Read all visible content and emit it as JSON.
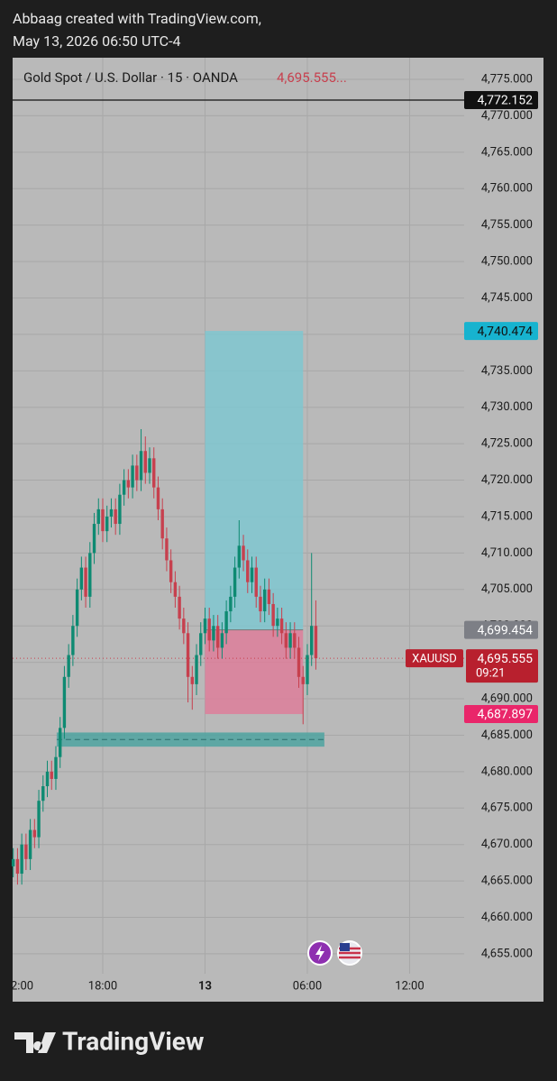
{
  "header": {
    "line1": "Abbaag created with TradingView.com,",
    "line2": "May 13, 2026 06:50 UTC-4"
  },
  "footer": {
    "brand": "TradingView"
  },
  "chart_data": {
    "type": "candlestick",
    "title": "Gold Spot / U.S. Dollar · 15 · OANDA",
    "last_price_label": "4,695.555...",
    "up_color": "#0e8a72",
    "down_color": "#c7404e",
    "grid": true,
    "xlim": [
      0.714,
      27.2
    ],
    "ylim": [
      4652.27,
      4777.97
    ],
    "xticks": [
      {
        "value": 0,
        "label": "2:00"
      },
      {
        "value": 6,
        "label": "18:00"
      },
      {
        "value": 12,
        "label": "13"
      },
      {
        "value": 18,
        "label": "06:00"
      },
      {
        "value": 24,
        "label": "12:00"
      }
    ],
    "yticks": [
      {
        "value": 4655,
        "label": "4,655.000"
      },
      {
        "value": 4660,
        "label": "4,660.000"
      },
      {
        "value": 4665,
        "label": "4,665.000"
      },
      {
        "value": 4670,
        "label": "4,670.000"
      },
      {
        "value": 4675,
        "label": "4,675.000"
      },
      {
        "value": 4680,
        "label": "4,680.000"
      },
      {
        "value": 4685,
        "label": "4,685.000"
      },
      {
        "value": 4690,
        "label": "4,690.000"
      },
      {
        "value": 4695,
        "label": "4,695.000"
      },
      {
        "value": 4700,
        "label": "4,700.000"
      },
      {
        "value": 4705,
        "label": "4,705.000"
      },
      {
        "value": 4710,
        "label": "4,710.000"
      },
      {
        "value": 4715,
        "label": "4,715.000"
      },
      {
        "value": 4720,
        "label": "4,720.000"
      },
      {
        "value": 4725,
        "label": "4,725.000"
      },
      {
        "value": 4730,
        "label": "4,730.000"
      },
      {
        "value": 4735,
        "label": "4,735.000"
      },
      {
        "value": 4740,
        "label": "4,740.000"
      },
      {
        "value": 4745,
        "label": "4,745.000"
      },
      {
        "value": 4750,
        "label": "4,750.000"
      },
      {
        "value": 4755,
        "label": "4,755.000"
      },
      {
        "value": 4760,
        "label": "4,760.000"
      },
      {
        "value": 4765,
        "label": "4,765.000"
      },
      {
        "value": 4770,
        "label": "4,770.000"
      },
      {
        "value": 4775,
        "label": "4,775.000"
      }
    ],
    "x": [
      0.75,
      1,
      1.25,
      1.5,
      1.75,
      2,
      2.25,
      2.5,
      2.75,
      3,
      3.25,
      3.5,
      3.75,
      4,
      4.25,
      4.5,
      4.75,
      5,
      5.25,
      5.5,
      5.75,
      6,
      6.25,
      6.5,
      6.75,
      7,
      7.25,
      7.5,
      7.75,
      8,
      8.25,
      8.5,
      8.75,
      9,
      9.25,
      9.5,
      9.75,
      10,
      10.25,
      10.5,
      10.75,
      11,
      11.25,
      11.5,
      11.75,
      12,
      12.25,
      12.5,
      12.75,
      13,
      13.25,
      13.5,
      13.75,
      14,
      14.25,
      14.5,
      14.75,
      15,
      15.25,
      15.5,
      15.75,
      16,
      16.25,
      16.5,
      16.75,
      17,
      17.25,
      17.5,
      17.75,
      18,
      18.25,
      18.5
    ],
    "open": [
      4667,
      4668,
      4666,
      4670,
      4668,
      4672,
      4671,
      4676,
      4678,
      4680,
      4679,
      4682,
      4686,
      4693,
      4696,
      4700,
      4705,
      4708,
      4704,
      4710,
      4714,
      4716,
      4713,
      4715,
      4716,
      4714,
      4718,
      4720,
      4719,
      4722,
      4720,
      4724,
      4721,
      4723,
      4719,
      4716,
      4712,
      4709,
      4706,
      4704,
      4701,
      4699,
      4693,
      4692,
      4696,
      4699,
      4701,
      4698,
      4700,
      4697,
      4699,
      4702,
      4704,
      4708,
      4711,
      4709,
      4706,
      4708,
      4704,
      4702,
      4705,
      4703,
      4700,
      4701,
      4699,
      4697,
      4699,
      4697,
      4693,
      4692,
      4696,
      4700
    ],
    "high": [
      4669.5,
      4669.5,
      4671.5,
      4671.5,
      4673.5,
      4673.5,
      4677.5,
      4679.5,
      4681.5,
      4681.5,
      4683.5,
      4687.5,
      4694.5,
      4697.5,
      4701.5,
      4706.5,
      4709.5,
      4709.5,
      4711.5,
      4715.5,
      4717.5,
      4717.5,
      4716.5,
      4717.5,
      4717.5,
      4719.5,
      4721.5,
      4721.5,
      4723.5,
      4723.5,
      4727,
      4726,
      4724.5,
      4724.5,
      4720.5,
      4717.5,
      4713.5,
      4710.5,
      4707.5,
      4705.5,
      4702.5,
      4700.5,
      4694.5,
      4697.5,
      4700.5,
      4702.5,
      4702.5,
      4701.5,
      4701.5,
      4700.5,
      4703.5,
      4705.5,
      4709.5,
      4714.5,
      4712.5,
      4710.5,
      4709.5,
      4709.5,
      4705.5,
      4706.5,
      4706.5,
      4704.5,
      4702.5,
      4702.5,
      4700.5,
      4700.5,
      4700.5,
      4698.5,
      4694.5,
      4697.5,
      4710,
      4703.5
    ],
    "low": [
      4665.5,
      4664.5,
      4664.5,
      4666.5,
      4666.5,
      4669.5,
      4669.5,
      4674.5,
      4676.5,
      4677.5,
      4677.5,
      4680.5,
      4684.5,
      4691.5,
      4694.5,
      4698.5,
      4703.5,
      4702.5,
      4702.5,
      4708.5,
      4712.5,
      4711.5,
      4711.5,
      4713.5,
      4712.5,
      4712.5,
      4716.5,
      4717.5,
      4717.5,
      4718.5,
      4718.5,
      4719.5,
      4719.5,
      4717.5,
      4714.5,
      4710.5,
      4707.5,
      4704.5,
      4702.5,
      4699.5,
      4697.5,
      4689.5,
      4688.5,
      4690.5,
      4694.5,
      4697.5,
      4696.5,
      4696.5,
      4695.5,
      4695.5,
      4697.5,
      4700.5,
      4702.5,
      4706.5,
      4707.5,
      4704.5,
      4704.5,
      4702.5,
      4700.5,
      4700.5,
      4701.5,
      4698.5,
      4698.5,
      4697.5,
      4695.5,
      4695.5,
      4695.5,
      4691.5,
      4686.5,
      4690.5,
      4694.5,
      4694
    ],
    "close": [
      4668,
      4666,
      4670,
      4668,
      4672,
      4671,
      4676,
      4678,
      4680,
      4679,
      4682,
      4686,
      4693,
      4696,
      4700,
      4705,
      4708,
      4704,
      4710,
      4714,
      4716,
      4713,
      4715,
      4716,
      4714,
      4718,
      4720,
      4719,
      4722,
      4720,
      4724,
      4721,
      4723,
      4719,
      4716,
      4712,
      4709,
      4706,
      4704,
      4701,
      4699,
      4693,
      4692,
      4696,
      4699,
      4701,
      4698,
      4700,
      4697,
      4699,
      4702,
      4704,
      4708,
      4711,
      4709,
      4706,
      4708,
      4704,
      4702,
      4705,
      4703,
      4700,
      4701,
      4699,
      4697,
      4699,
      4697,
      4693,
      4692,
      4696,
      4700,
      4695.555
    ],
    "last_price": {
      "value": 4695.555,
      "label": "4,695.555",
      "symbol": "XAUUSD",
      "countdown": "09:21"
    },
    "horizontal_line": {
      "value": 4772.152,
      "label": "4,772.152"
    },
    "position": {
      "x_start": 12,
      "x_end": 17.75,
      "target": {
        "value": 4740.474,
        "label": "4,740.474"
      },
      "entry": {
        "value": 4699.454,
        "label": "4,699.454"
      },
      "stop": {
        "value": 4687.897,
        "label": "4,687.897"
      }
    },
    "zone": {
      "x_start": 3.3,
      "x_end": 19,
      "low": 4683.8,
      "high": 4685
    }
  }
}
